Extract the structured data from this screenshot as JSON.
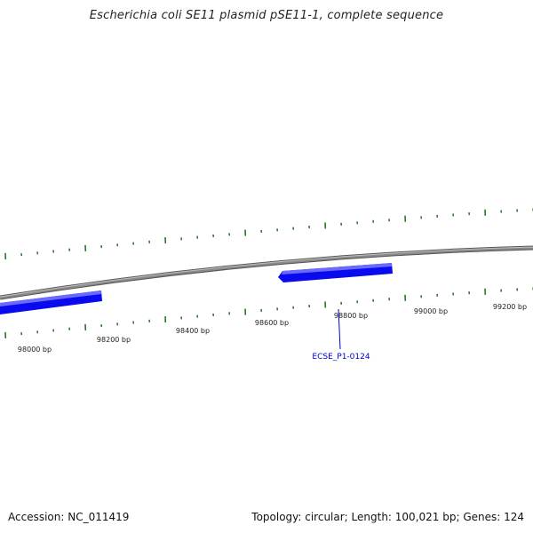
{
  "title": "Escherichia coli SE11 plasmid pSE11-1, complete sequence",
  "footer": {
    "accession": "Accession: NC_011419",
    "summary": "Topology: circular; Length: 100,021 bp; Genes: 124"
  },
  "colors": {
    "backbone": "#8a8a8a",
    "gene": "#0a0aee",
    "gene_highlight": "#7a7aff",
    "tick": "#1f7a1f",
    "gene_label": "#0000cc"
  },
  "map": {
    "bp_labels": [
      "98000 bp",
      "98200 bp",
      "98400 bp",
      "98600 bp",
      "98800 bp",
      "99000 bp",
      "99200 bp"
    ],
    "gene_labels": [
      "ECSE_P1-0124"
    ]
  }
}
